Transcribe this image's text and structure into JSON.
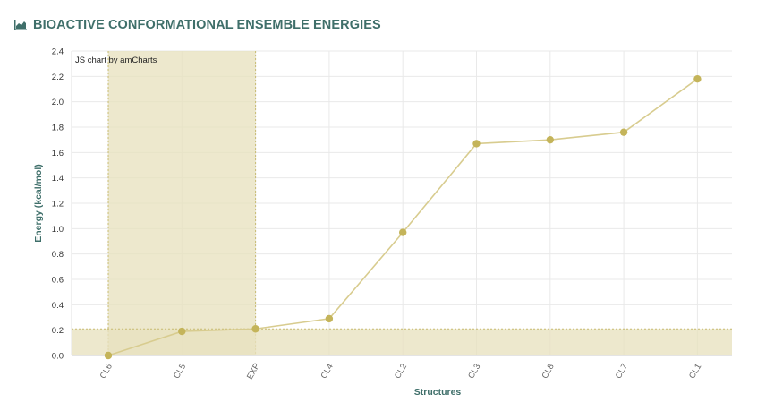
{
  "header": {
    "icon": "area-chart-icon",
    "title": "BIOACTIVE CONFORMATIONAL ENSEMBLE ENERGIES"
  },
  "credit": "JS chart by amCharts",
  "colors": {
    "line": "#d8cc8f",
    "point": "#c4b45a",
    "band": "#e8e2bf",
    "band_border": "#c8bb72",
    "title": "#3f6f6a",
    "grid": "#e9e9e9"
  },
  "chart_data": {
    "type": "line",
    "categories": [
      "CL6",
      "CL5",
      "EXP",
      "CL4",
      "CL2",
      "CL3",
      "CL8",
      "CL7",
      "CL1"
    ],
    "series": [
      {
        "values": [
          0.0,
          0.19,
          0.21,
          0.29,
          0.97,
          1.67,
          1.7,
          1.76,
          2.18
        ]
      }
    ],
    "xlabel": "Structures",
    "ylabel": "Energy (kcal/mol)",
    "ylim": [
      0,
      2.4
    ],
    "yticks": [
      "0.0",
      "0.2",
      "0.4",
      "0.6",
      "0.8",
      "1.0",
      "1.2",
      "1.4",
      "1.6",
      "1.8",
      "2.0",
      "2.2",
      "2.4"
    ],
    "grid": true,
    "highlight": {
      "category_range": [
        "CL6",
        "EXP"
      ],
      "value_range": [
        0,
        0.21
      ]
    }
  }
}
